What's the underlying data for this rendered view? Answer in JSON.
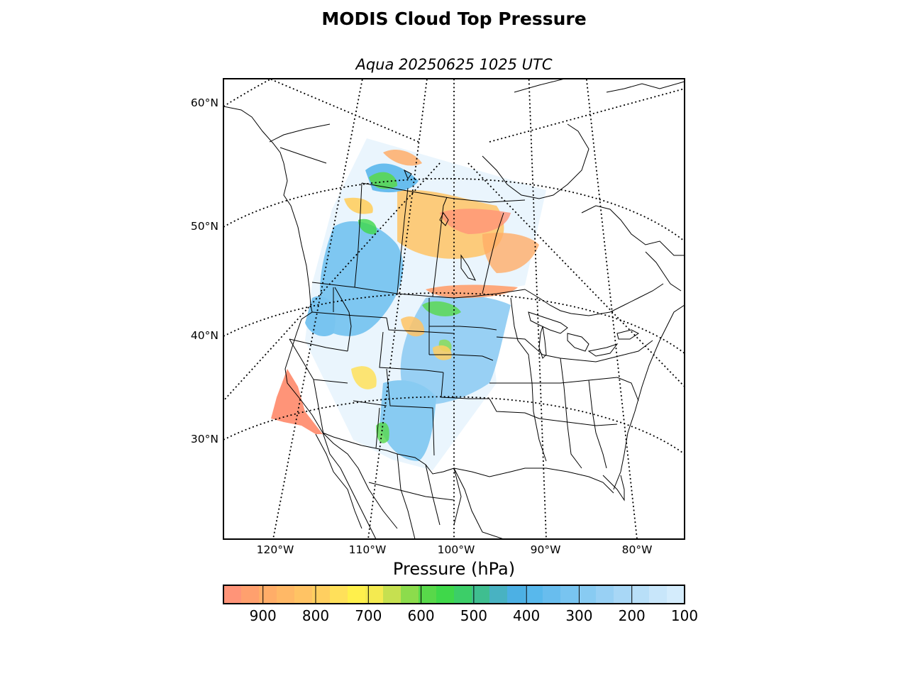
{
  "title": "MODIS Cloud Top Pressure",
  "subtitle": "Aqua 20250625 1025 UTC",
  "map": {
    "projection": "lambert-conformal",
    "region": "North America",
    "gridlines": "dotted",
    "lat_labels": [
      "60°N",
      "50°N",
      "40°N",
      "30°N"
    ],
    "lon_labels": [
      "120°W",
      "110°W",
      "100°W",
      "90°W",
      "80°W"
    ],
    "colors": {
      "coastline": "#000000",
      "borders": "#000000",
      "graticule": "#000000",
      "background": "#ffffff"
    }
  },
  "colorbar": {
    "title": "Pressure (hPa)",
    "tick_labels": [
      "900",
      "800",
      "700",
      "600",
      "500",
      "400",
      "300",
      "200",
      "100"
    ],
    "range": [
      975,
      100
    ],
    "orientation": "horizontal",
    "colors": [
      "#ff9478",
      "#ffa06e",
      "#ffad68",
      "#ffb866",
      "#ffc364",
      "#ffcf60",
      "#ffe05a",
      "#fff04c",
      "#f4ea50",
      "#c6e050",
      "#8cdc4c",
      "#58d84a",
      "#3fd84a",
      "#3cce68",
      "#3fbe90",
      "#48b2c2",
      "#4cb0e4",
      "#58b8ec",
      "#68bdee",
      "#78c4f0",
      "#88cbf2",
      "#98d0f4",
      "#a8d7f6",
      "#b8dff8",
      "#c8e6fa",
      "#d4ecfc"
    ]
  }
}
